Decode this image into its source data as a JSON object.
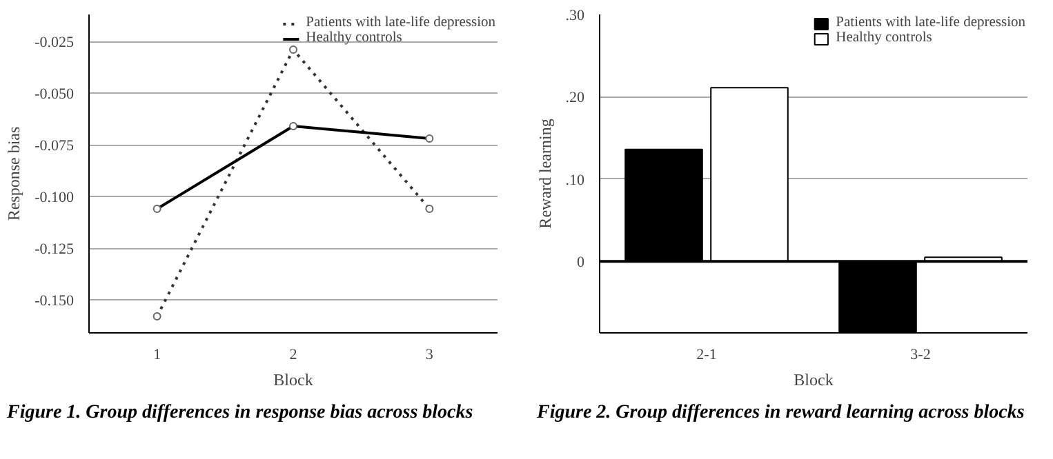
{
  "chart_data": [
    {
      "type": "line",
      "annotations": [
        "Figure 1.  Group differences in response bias across blocks"
      ],
      "xlabel": "Block",
      "ylabel": "Response bias",
      "categories": [
        "1",
        "2",
        "3"
      ],
      "series": [
        {
          "name": "Patients with late-life depression",
          "color": "#333333",
          "line_style": "dotted",
          "values": [
            -0.158,
            -0.029,
            -0.106
          ]
        },
        {
          "name": "Healthy controls",
          "color": "#000000",
          "line_style": "solid",
          "values": [
            -0.106,
            -0.066,
            -0.072
          ]
        }
      ],
      "ylim": [
        -0.166,
        -0.012
      ],
      "yticks": [
        {
          "value": -0.15,
          "label": "-0.150"
        },
        {
          "value": -0.125,
          "label": "-0.125"
        },
        {
          "value": -0.1,
          "label": "-0.100"
        },
        {
          "value": -0.075,
          "label": "-0.075"
        },
        {
          "value": -0.05,
          "label": "-0.050"
        },
        {
          "value": -0.025,
          "label": "-0.025"
        }
      ],
      "grid": "y",
      "legend": "top right",
      "marker": "circle"
    },
    {
      "type": "bar",
      "annotations": [
        "Figure 2. Group differences in reward learning across blocks"
      ],
      "xlabel": "Block",
      "ylabel": "Reward learning",
      "categories": [
        "2-1",
        "3-2"
      ],
      "series": [
        {
          "name": "Patients with late-life depression",
          "color": "#000000",
          "values": [
            0.136,
            -0.086
          ]
        },
        {
          "name": "Healthy controls",
          "color": "#ffffff",
          "values": [
            0.211,
            0.005
          ]
        }
      ],
      "ylim": [
        -0.087,
        0.3
      ],
      "yticks": [
        {
          "value": 0,
          "label": "0"
        },
        {
          "value": 0.1,
          "label": ".10"
        },
        {
          "value": 0.2,
          "label": ".20"
        },
        {
          "value": 0.3,
          "label": ".30"
        }
      ],
      "ref_lines": [
        {
          "axis": "y",
          "value": 0
        }
      ],
      "grid": "y",
      "legend": "top right"
    }
  ]
}
